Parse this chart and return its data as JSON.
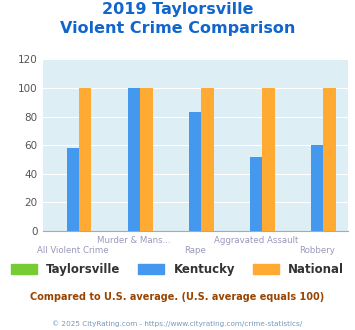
{
  "title_line1": "2019 Taylorsville",
  "title_line2": "Violent Crime Comparison",
  "top_labels": [
    "",
    "Murder & Mans...",
    "",
    "Aggravated Assault",
    ""
  ],
  "bot_labels": [
    "All Violent Crime",
    "",
    "Rape",
    "",
    "Robbery"
  ],
  "series": {
    "Taylorsville": [
      0,
      0,
      0,
      0,
      0
    ],
    "Kentucky": [
      58,
      100,
      83,
      52,
      60
    ],
    "National": [
      100,
      100,
      100,
      100,
      100
    ]
  },
  "colors": {
    "Taylorsville": "#77cc33",
    "Kentucky": "#4499ee",
    "National": "#ffaa33"
  },
  "ylim": [
    0,
    120
  ],
  "yticks": [
    0,
    20,
    40,
    60,
    80,
    100,
    120
  ],
  "title_color": "#1166cc",
  "plot_bg": "#ddeef5",
  "footer_text": "Compared to U.S. average. (U.S. average equals 100)",
  "footer_color": "#994400",
  "credit_text": "© 2025 CityRating.com - https://www.cityrating.com/crime-statistics/",
  "credit_color": "#7799bb",
  "label_color": "#9999bb"
}
